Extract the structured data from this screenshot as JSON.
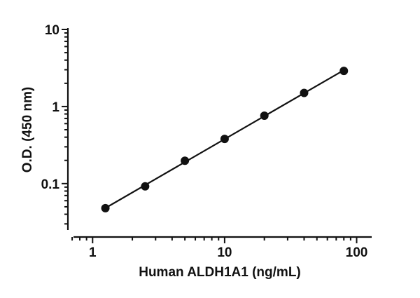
{
  "chart_data": {
    "type": "scatter",
    "title": "",
    "xlabel": "Human ALDH1A1 (ng/mL)",
    "ylabel": "O.D. (450 nm)",
    "xscale": "log",
    "yscale": "log",
    "xlim": [
      0.65,
      130
    ],
    "ylim": [
      0.025,
      10
    ],
    "xticks": [
      1,
      10,
      100
    ],
    "xtick_labels": [
      "1",
      "10",
      "100"
    ],
    "yticks": [
      0.1,
      1,
      10
    ],
    "ytick_labels": [
      "0.1",
      "1",
      "10"
    ],
    "grid": false,
    "legend": "none",
    "fit_line": true,
    "series": [
      {
        "x": [
          1.25,
          2.5,
          5,
          10,
          20,
          40,
          80
        ],
        "y": [
          0.048,
          0.092,
          0.198,
          0.38,
          0.76,
          1.5,
          2.9
        ],
        "color": "#111111"
      }
    ]
  }
}
